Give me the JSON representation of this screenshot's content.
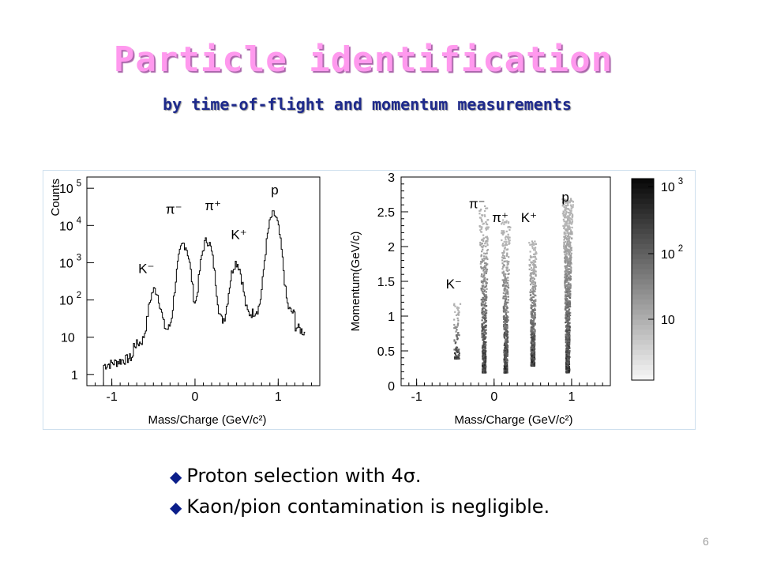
{
  "slide": {
    "title": "Particle identification",
    "subtitle": "by time-of-flight and momentum measurements",
    "bullets": [
      "Proton selection with 4σ.",
      "Kaon/pion contamination is negligible."
    ],
    "bullet_icon": "diamond-bullet-icon",
    "page_number": "6",
    "colors": {
      "title": "#ff99ee",
      "subtitle": "#1e2a8c",
      "bullet": "#0b1e8a"
    }
  },
  "chart_data": [
    {
      "type": "line",
      "xlabel": "Mass/Charge (GeV/c²)",
      "ylabel": "Counts",
      "log_y": true,
      "xlim": [
        -1.3,
        1.5
      ],
      "ylim": [
        0.5,
        200000
      ],
      "x_ticks": [
        "-1",
        "0",
        "1"
      ],
      "y_ticks": [
        {
          "base": "1",
          "exp": ""
        },
        {
          "base": "10",
          "exp": ""
        },
        {
          "base": "10",
          "exp": "2"
        },
        {
          "base": "10",
          "exp": "3"
        },
        {
          "base": "10",
          "exp": "4"
        },
        {
          "base": "10",
          "exp": "5"
        }
      ],
      "peaks": [
        {
          "label": "K⁻",
          "x": -0.49,
          "y": 180
        },
        {
          "label": "π⁻",
          "x": -0.14,
          "y": 3200
        },
        {
          "label": "π⁺",
          "x": 0.14,
          "y": 4000
        },
        {
          "label": "K⁺",
          "x": 0.49,
          "y": 1000
        },
        {
          "label": "p",
          "x": 0.94,
          "y": 20000
        }
      ]
    },
    {
      "type": "heatmap",
      "xlabel": "Mass/Charge (GeV/c²)",
      "ylabel": "Momentum(GeV/c)",
      "xlim": [
        -1.2,
        1.5
      ],
      "ylim": [
        0,
        3
      ],
      "x_ticks": [
        "-1",
        "0",
        "1"
      ],
      "y_ticks": [
        "0",
        "0.5",
        "1",
        "1.5",
        "2",
        "2.5",
        "3"
      ],
      "bands": [
        {
          "label": "K⁻",
          "x": -0.49,
          "p_range": [
            0.4,
            1.2
          ]
        },
        {
          "label": "π⁻",
          "x": -0.14,
          "p_range": [
            0.2,
            2.6
          ]
        },
        {
          "label": "π⁺",
          "x": 0.14,
          "p_range": [
            0.2,
            2.4
          ]
        },
        {
          "label": "K⁺",
          "x": 0.49,
          "p_range": [
            0.3,
            2.1
          ]
        },
        {
          "label": "p",
          "x": 0.94,
          "p_range": [
            0.2,
            2.7
          ]
        }
      ],
      "colorbar": {
        "scale": "log",
        "ticks": [
          {
            "base": "10",
            "exp": ""
          },
          {
            "base": "10",
            "exp": "2"
          },
          {
            "base": "10",
            "exp": "3"
          }
        ]
      }
    }
  ]
}
